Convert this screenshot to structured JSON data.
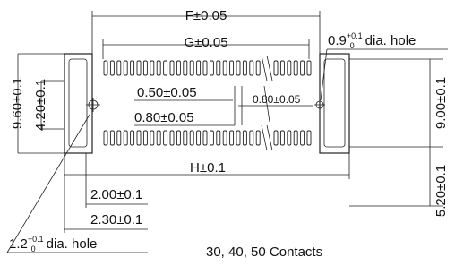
{
  "dimensions": {
    "f": "F±0.05",
    "g": "G±0.05",
    "h": "H±0.1",
    "height_total": "9.60±0.1",
    "height_inner": "4.20±0.1",
    "height_right": "9.00±0.1",
    "pitch_small": "0.50±0.05",
    "pitch_small_2": "0.80±0.05",
    "pitch": "0.80±0.05",
    "offset_1": "2.00±0.1",
    "offset_2": "2.30±0.1",
    "offset_vertical": "5.20±0.1"
  },
  "holes": {
    "right": {
      "value": "0.9",
      "tol_upper": "+0.1",
      "tol_lower": "0",
      "suffix": "dia. hole"
    },
    "left": {
      "value": "1.2",
      "tol_upper": "+0.1",
      "tol_lower": "0",
      "suffix": "dia. hole"
    }
  },
  "caption": "30, 40, 50 Contacts"
}
